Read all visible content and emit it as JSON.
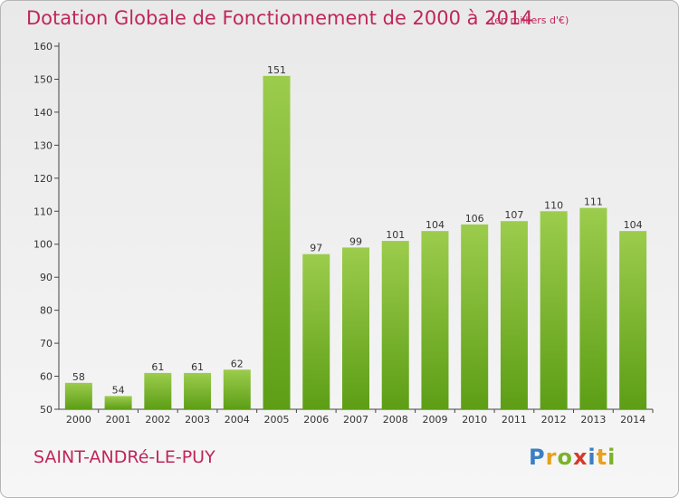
{
  "title": "Dotation Globale de Fonctionnement de 2000 à 2014",
  "unit_note": "(en milliers d'€)",
  "commune": "SAINT-ANDRé-LE-PUY",
  "logo": {
    "text": "Proxiti",
    "colors": [
      "#3a7fc4",
      "#e8a11c",
      "#7cb22a",
      "#d63a2c",
      "#3a7fc4",
      "#e8a11c",
      "#7cb22a"
    ]
  },
  "colors": {
    "title": "#c0265c",
    "bar_top": "#9ccc4c",
    "bar_bottom": "#5d9e16"
  },
  "chart_data": {
    "type": "bar",
    "title": "Dotation Globale de Fonctionnement de 2000 à 2014",
    "subtitle": "(en milliers d'€)",
    "xlabel": "",
    "ylabel": "",
    "categories": [
      "2000",
      "2001",
      "2002",
      "2003",
      "2004",
      "2005",
      "2006",
      "2007",
      "2008",
      "2009",
      "2010",
      "2011",
      "2012",
      "2013",
      "2014"
    ],
    "values": [
      58,
      54,
      61,
      61,
      62,
      151,
      97,
      99,
      101,
      104,
      106,
      107,
      110,
      111,
      104
    ],
    "ylim": [
      50,
      160
    ],
    "yticks": [
      50,
      60,
      70,
      80,
      90,
      100,
      110,
      120,
      130,
      140,
      150,
      160
    ],
    "grid": false,
    "data_labels": true
  }
}
